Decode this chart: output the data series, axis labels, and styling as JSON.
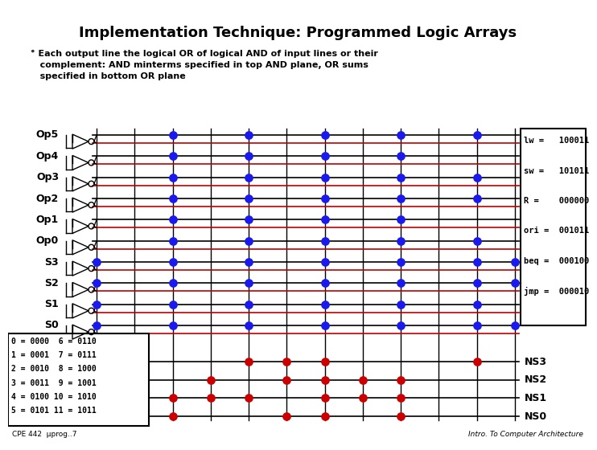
{
  "title": "Implementation Technique: Programmed Logic Arrays",
  "bullet_line1": "° Each output line the logical OR of logical AND of input lines or their",
  "bullet_line2": "   complement: AND minterms specified in top AND plane, OR sums",
  "bullet_line3": "   specified in bottom OR plane",
  "input_labels": [
    "Op5",
    "Op4",
    "Op3",
    "Op2",
    "Op1",
    "Op0",
    "S3",
    "S2",
    "S1",
    "S0"
  ],
  "output_labels": [
    "NS3",
    "NS2",
    "NS1",
    "NS0"
  ],
  "right_box_lines": [
    "lw =   100011",
    "sw =   101011",
    "R =    000000",
    "ori =  001011",
    "beq =  000100",
    "jmp =  000010"
  ],
  "legend_lines": [
    "0 = 0000  6 = 0110",
    "1 = 0001  7 = 0111",
    "2 = 0010  8 = 1000",
    "3 = 0011  9 = 1001",
    "4 = 0100 10 = 1010",
    "5 = 0101 11 = 1011"
  ],
  "footer_left": "CPE 442  μprog..7",
  "footer_right": "Intro. To Computer Architecture",
  "bg_color": "#ffffff",
  "blue_color": "#1a1aee",
  "red_color": "#cc0000",
  "dark_red_line": "#bb0000",
  "n_cols": 12,
  "and_blue_dots": {
    "0": [
      2,
      4,
      6,
      8,
      10
    ],
    "1": [
      2,
      4,
      6,
      8
    ],
    "2": [
      2,
      4,
      6,
      8,
      10
    ],
    "3": [
      2,
      4,
      6,
      8,
      10
    ],
    "4": [
      2,
      4,
      6,
      8
    ],
    "5": [
      2,
      4,
      6,
      8,
      10
    ],
    "6": [
      0,
      2,
      4,
      6,
      8,
      10,
      11
    ],
    "7": [
      0,
      2,
      4,
      6,
      8,
      10,
      11
    ],
    "8": [
      0,
      2,
      4,
      6,
      8,
      10
    ],
    "9": [
      0,
      2,
      4,
      6,
      8,
      10,
      11
    ]
  },
  "or_red_dots": {
    "0": [
      4,
      5,
      6,
      10
    ],
    "1": [
      3,
      5,
      6,
      7,
      8
    ],
    "2": [
      2,
      3,
      4,
      6,
      7,
      8
    ],
    "3": [
      2,
      5,
      6,
      8
    ]
  }
}
